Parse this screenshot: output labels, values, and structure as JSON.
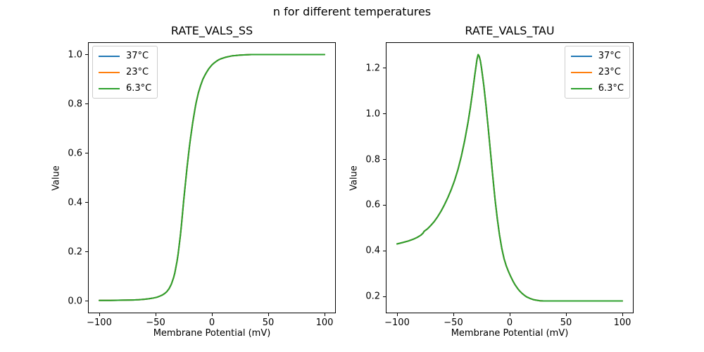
{
  "figure": {
    "suptitle": "n for different temperatures",
    "background_color": "#ffffff",
    "text_color": "#000000"
  },
  "chart_data": [
    {
      "type": "line",
      "title": "RATE_VALS_SS",
      "xlabel": "Membrane Potential (mV)",
      "ylabel": "Value",
      "xlim": [
        -110,
        110
      ],
      "ylim": [
        -0.05,
        1.05
      ],
      "grid": false,
      "legend_position": "upper-left",
      "xticks": [
        -100,
        -50,
        0,
        50,
        100
      ],
      "xtick_labels": [
        "−100",
        "−50",
        "0",
        "50",
        "100"
      ],
      "yticks": [
        0.0,
        0.2,
        0.4,
        0.6,
        0.8,
        1.0
      ],
      "ytick_labels": [
        "0.0",
        "0.2",
        "0.4",
        "0.6",
        "0.8",
        "1.0"
      ],
      "note": "all three temperature series are identical and overlap; the last-drawn (6.3°C, green) curve is visible",
      "x": [
        -100,
        -90,
        -80,
        -70,
        -65,
        -60,
        -56,
        -52,
        -49,
        -46,
        -44,
        -42,
        -40,
        -38,
        -36,
        -34,
        -33,
        -31,
        -30,
        -28,
        -27,
        -25,
        -23,
        -22,
        -20,
        -19,
        -17,
        -15,
        -14,
        -12,
        -10,
        -8,
        -6,
        -5,
        -3,
        -2,
        0,
        2,
        4,
        6,
        8,
        10,
        12,
        15,
        18,
        21,
        25,
        30,
        35,
        40,
        50,
        60,
        70,
        80,
        90,
        100
      ],
      "shared_values": [
        0.002,
        0.002,
        0.003,
        0.004,
        0.005,
        0.007,
        0.009,
        0.012,
        0.015,
        0.02,
        0.024,
        0.03,
        0.038,
        0.05,
        0.068,
        0.095,
        0.112,
        0.16,
        0.19,
        0.265,
        0.31,
        0.41,
        0.5,
        0.545,
        0.625,
        0.66,
        0.725,
        0.78,
        0.805,
        0.845,
        0.875,
        0.9,
        0.918,
        0.926,
        0.941,
        0.947,
        0.958,
        0.966,
        0.973,
        0.979,
        0.983,
        0.986,
        0.989,
        0.992,
        0.995,
        0.996,
        0.998,
        0.999,
        1.0,
        1.0,
        1.0,
        1.0,
        1.0,
        1.0,
        1.0,
        1.0
      ],
      "series": [
        {
          "name": "37°C",
          "color": "#1f77b4"
        },
        {
          "name": "23°C",
          "color": "#ff7f0e"
        },
        {
          "name": "6.3°C",
          "color": "#2ca02c"
        }
      ]
    },
    {
      "type": "line",
      "title": "RATE_VALS_TAU",
      "xlabel": "Membrane Potential (mV)",
      "ylabel": "Value",
      "xlim": [
        -110,
        110
      ],
      "ylim": [
        0.126,
        1.314
      ],
      "grid": false,
      "legend_position": "upper-right",
      "xticks": [
        -100,
        -50,
        0,
        50,
        100
      ],
      "xtick_labels": [
        "−100",
        "−50",
        "0",
        "50",
        "100"
      ],
      "yticks": [
        0.2,
        0.4,
        0.6,
        0.8,
        1.0,
        1.2
      ],
      "ytick_labels": [
        "0.2",
        "0.4",
        "0.6",
        "0.8",
        "1.0",
        "1.2"
      ],
      "note": "all three temperature series are identical and overlap; peak ~1.26 near -28 mV, plateau 0.18 above +30 mV",
      "x": [
        -100,
        -95,
        -90,
        -85,
        -82,
        -79,
        -77,
        -76,
        -75,
        -73,
        -70,
        -67,
        -64,
        -61,
        -58,
        -55,
        -52,
        -49,
        -46,
        -43,
        -40,
        -37,
        -35,
        -33,
        -31,
        -30,
        -29,
        -28,
        -27,
        -26,
        -25,
        -23,
        -21,
        -19,
        -17,
        -15,
        -13,
        -11,
        -9,
        -7,
        -5,
        -3,
        -1,
        1,
        3,
        5,
        7,
        9,
        11,
        13,
        15,
        18,
        21,
        24,
        27,
        30,
        40,
        50,
        60,
        70,
        80,
        90,
        100
      ],
      "shared_values": [
        0.43,
        0.436,
        0.443,
        0.452,
        0.459,
        0.468,
        0.477,
        0.485,
        0.489,
        0.496,
        0.511,
        0.528,
        0.549,
        0.573,
        0.601,
        0.632,
        0.667,
        0.707,
        0.755,
        0.813,
        0.882,
        0.963,
        1.025,
        1.095,
        1.17,
        1.205,
        1.24,
        1.26,
        1.252,
        1.232,
        1.2,
        1.125,
        1.035,
        0.935,
        0.83,
        0.725,
        0.625,
        0.54,
        0.468,
        0.41,
        0.365,
        0.333,
        0.308,
        0.286,
        0.266,
        0.249,
        0.235,
        0.223,
        0.213,
        0.205,
        0.198,
        0.191,
        0.186,
        0.183,
        0.181,
        0.18,
        0.18,
        0.18,
        0.18,
        0.18,
        0.18,
        0.18,
        0.18
      ],
      "series": [
        {
          "name": "37°C",
          "color": "#1f77b4"
        },
        {
          "name": "23°C",
          "color": "#ff7f0e"
        },
        {
          "name": "6.3°C",
          "color": "#2ca02c"
        }
      ]
    }
  ]
}
